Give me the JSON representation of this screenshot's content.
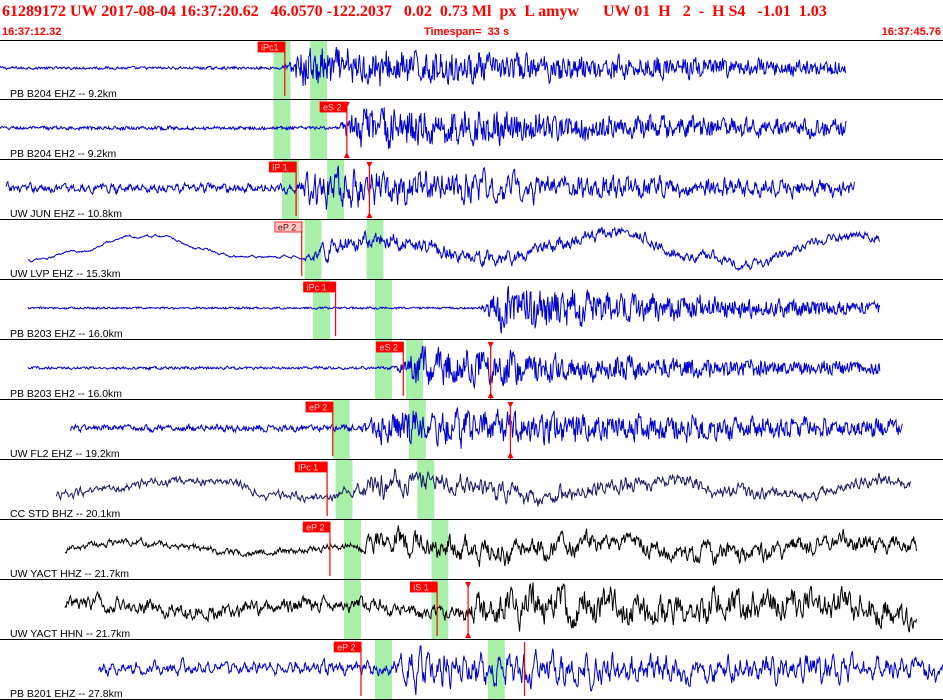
{
  "header": {
    "title": "61289172 UW 2017-08-04 16:37:20.62   46.0570 -122.2037   0.02  0.73 Ml  px  L amyw      UW 01  H   2  -  H S4   -1.01  1.03",
    "time_start": "16:37:12.32",
    "timespan": "Timespan=  33 s",
    "time_end": "16:37:45.76"
  },
  "colors": {
    "header_text": "#ff0000",
    "trace_blue": "#0000cc",
    "trace_navy": "#1a1a66",
    "trace_black": "#000000",
    "window_green": "#a8f0a8",
    "pick_red": "#ff0000",
    "pick_label_pink": "#ffc8c8"
  },
  "chart_data": {
    "type": "seismogram",
    "x_range_s": [
      0,
      33.44
    ],
    "axis_labels_printed": false,
    "traces": [
      {
        "label": "PB B204 EHZ -- 9.2km",
        "color": "blue",
        "start_s": 0.0,
        "end_s": 30.0,
        "onset_s": 10.0,
        "amp_pre": 0.04,
        "amp_post": 0.55,
        "decay": 0.06,
        "lp": 0.2,
        "freq": 2.2,
        "osc": 0,
        "windows": [
          [
            9.7,
            10.3
          ],
          [
            11.0,
            11.6
          ]
        ],
        "picks": [
          {
            "label": "iPc1",
            "t": 10.1,
            "style": "red",
            "dir": "down",
            "tri": false
          }
        ]
      },
      {
        "label": "PB B204 EH2 -- 9.2km",
        "color": "blue",
        "start_s": 0.0,
        "end_s": 30.0,
        "onset_s": 12.0,
        "amp_pre": 0.05,
        "amp_post": 0.55,
        "decay": 0.06,
        "lp": 0.2,
        "freq": 2.0,
        "osc": 0,
        "windows": [
          [
            9.7,
            10.3
          ],
          [
            11.0,
            11.6
          ]
        ],
        "picks": [
          {
            "label": "eS 2",
            "t": 12.3,
            "style": "red",
            "dir": "down",
            "tri": true
          }
        ]
      },
      {
        "label": "UW JUN EHZ -- 10.8km",
        "color": "blue",
        "start_s": 0.2,
        "end_s": 30.3,
        "onset_s": 10.4,
        "amp_pre": 0.16,
        "amp_post": 0.6,
        "decay": 0.08,
        "lp": 0.45,
        "freq": 3.5,
        "osc": 0,
        "windows": [
          [
            10.0,
            10.6
          ],
          [
            11.6,
            12.2
          ]
        ],
        "picks": [
          {
            "label": "iP 1",
            "t": 10.5,
            "style": "red",
            "dir": "down",
            "tri": false
          },
          {
            "label": "",
            "t": 13.1,
            "style": "red",
            "dir": "down",
            "tri": true
          }
        ]
      },
      {
        "label": "UW LVP EHZ -- 15.3km",
        "color": "blue",
        "start_s": 1.0,
        "end_s": 31.2,
        "onset_s": 10.7,
        "amp_pre": 0.0,
        "amp_post": 0.35,
        "decay": 0.05,
        "lp": 0.5,
        "freq": 2.0,
        "osc": 0.6,
        "windows": [
          [
            10.8,
            11.4
          ],
          [
            13.0,
            13.6
          ]
        ],
        "picks": [
          {
            "label": "eP 2",
            "t": 10.7,
            "style": "pink",
            "dir": "down",
            "tri": false
          }
        ]
      },
      {
        "label": "PB B203 EHZ -- 16.0km",
        "color": "blue",
        "start_s": 1.0,
        "end_s": 31.2,
        "onset_s": 17.0,
        "amp_pre": 0.03,
        "amp_post": 0.6,
        "decay": 0.1,
        "lp": 0.15,
        "freq": 1.8,
        "osc": 0,
        "windows": [
          [
            11.1,
            11.7
          ],
          [
            13.3,
            13.9
          ]
        ],
        "picks": [
          {
            "label": "iPc 1",
            "t": 11.9,
            "style": "red",
            "dir": "down",
            "tri": false
          }
        ]
      },
      {
        "label": "PB B203 EH2 -- 16.0km",
        "color": "blue",
        "start_s": 1.0,
        "end_s": 31.2,
        "onset_s": 14.0,
        "amp_pre": 0.04,
        "amp_post": 0.55,
        "decay": 0.08,
        "lp": 0.2,
        "freq": 1.9,
        "osc": 0,
        "windows": [
          [
            13.3,
            13.9
          ],
          [
            14.4,
            15.0
          ]
        ],
        "picks": [
          {
            "label": "eS 2",
            "t": 14.3,
            "style": "red",
            "dir": "down",
            "tri": false
          },
          {
            "label": "",
            "t": 17.4,
            "style": "red",
            "dir": "both",
            "tri": true
          }
        ]
      },
      {
        "label": "UW FL2 EHZ -- 19.2km",
        "color": "blue",
        "start_s": 2.5,
        "end_s": 32.0,
        "onset_s": 12.8,
        "amp_pre": 0.1,
        "amp_post": 0.55,
        "decay": 0.06,
        "lp": 0.3,
        "freq": 2.0,
        "osc": 0,
        "windows": [
          [
            11.8,
            12.4
          ],
          [
            14.5,
            15.1
          ]
        ],
        "picks": [
          {
            "label": "eP 2",
            "t": 11.8,
            "style": "red",
            "dir": "down",
            "tri": false
          },
          {
            "label": "",
            "t": 18.1,
            "style": "red",
            "dir": "both",
            "tri": true
          }
        ]
      },
      {
        "label": "CC STD BHZ -- 20.1km",
        "color": "navy",
        "start_s": 2.0,
        "end_s": 32.3,
        "onset_s": 12.4,
        "amp_pre": 0.14,
        "amp_post": 0.35,
        "decay": 0.1,
        "lp": 0.6,
        "freq": 6.0,
        "osc": 0.35,
        "windows": [
          [
            11.9,
            12.5
          ],
          [
            14.8,
            15.4
          ]
        ],
        "picks": [
          {
            "label": "iPc 1",
            "t": 11.6,
            "style": "red",
            "dir": "down",
            "tri": false
          }
        ]
      },
      {
        "label": "UW YACT HHZ -- 21.7km",
        "color": "black",
        "start_s": 2.3,
        "end_s": 32.5,
        "onset_s": 12.6,
        "amp_pre": 0.12,
        "amp_post": 0.4,
        "decay": 0.03,
        "lp": 0.55,
        "freq": 1.2,
        "osc": 0.25,
        "windows": [
          [
            12.2,
            12.8
          ],
          [
            15.3,
            15.9
          ]
        ],
        "picks": [
          {
            "label": "eP 2",
            "t": 11.7,
            "style": "red",
            "dir": "down",
            "tri": false
          }
        ]
      },
      {
        "label": "UW YACT HHN -- 21.7km",
        "color": "black",
        "start_s": 2.3,
        "end_s": 32.5,
        "onset_s": 16.4,
        "amp_pre": 0.3,
        "amp_post": 0.5,
        "decay": 0.04,
        "lp": 0.55,
        "freq": 1.1,
        "osc": 0.2,
        "windows": [
          [
            12.2,
            12.8
          ],
          [
            15.3,
            15.9
          ]
        ],
        "picks": [
          {
            "label": "iS 1",
            "t": 15.5,
            "style": "red",
            "dir": "down",
            "tri": false
          },
          {
            "label": "",
            "t": 16.6,
            "style": "red",
            "dir": "down",
            "tri": true
          }
        ]
      },
      {
        "label": "PB B201 EHZ -- 27.8km",
        "color": "blue",
        "start_s": 3.5,
        "end_s": 33.44,
        "onset_s": 13.7,
        "amp_pre": 0.28,
        "amp_post": 0.45,
        "decay": 0.03,
        "lp": 0.6,
        "freq": 3.2,
        "osc": 0,
        "windows": [
          [
            13.3,
            13.9
          ],
          [
            17.3,
            17.9
          ]
        ],
        "picks": [
          {
            "label": "eP 2",
            "t": 12.8,
            "style": "red",
            "dir": "down",
            "tri": false
          },
          {
            "label": "",
            "t": 18.6,
            "style": "red",
            "dir": "down",
            "tri": false
          }
        ]
      }
    ]
  }
}
